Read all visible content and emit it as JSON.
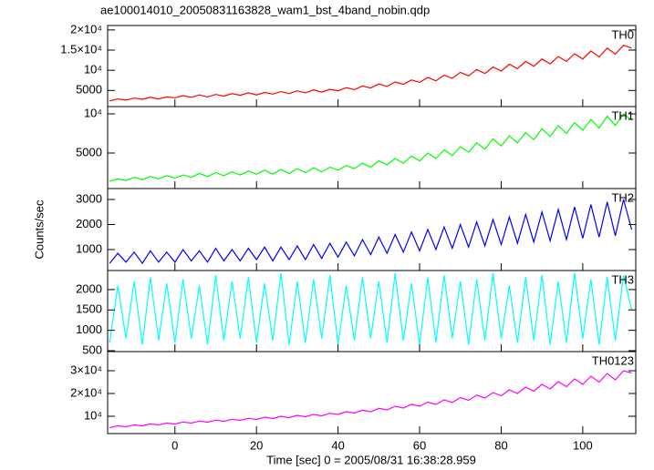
{
  "title": "ae100014010_20050831163828_wam1_bst_4band_nobin.qdp",
  "y_label": "Counts/sec",
  "x_label": "Time [sec] 0 = 2005/08/31 16:38:28.959",
  "chart_data": [
    {
      "type": "line",
      "label": "TH0",
      "color": "#ff0000",
      "x": [
        -16,
        -14,
        -12,
        -10,
        -8,
        -6,
        -4,
        -2,
        0,
        2,
        4,
        6,
        8,
        10,
        12,
        14,
        16,
        18,
        20,
        22,
        24,
        26,
        28,
        30,
        32,
        34,
        36,
        38,
        40,
        42,
        44,
        46,
        48,
        50,
        52,
        54,
        56,
        58,
        60,
        62,
        64,
        66,
        68,
        70,
        72,
        74,
        76,
        78,
        80,
        82,
        84,
        86,
        88,
        90,
        92,
        94,
        96,
        98,
        100,
        102,
        104,
        106,
        108,
        110,
        112
      ],
      "values": [
        2400,
        2900,
        2600,
        3100,
        2800,
        3300,
        2900,
        3400,
        3200,
        3700,
        3300,
        3900,
        3400,
        4000,
        3600,
        4200,
        3800,
        4400,
        3900,
        4500,
        4100,
        4700,
        4200,
        4900,
        4400,
        5100,
        4600,
        5300,
        4900,
        5700,
        5200,
        6100,
        5600,
        6600,
        6000,
        7100,
        6500,
        7600,
        7000,
        8200,
        7400,
        8800,
        8000,
        9500,
        8600,
        10200,
        9200,
        10800,
        9800,
        11500,
        10400,
        12200,
        11000,
        12800,
        11600,
        13400,
        12200,
        14100,
        12800,
        14800,
        13300,
        15500,
        14000,
        16200,
        15500
      ],
      "xlim": [
        -16.5,
        113
      ],
      "ylim": [
        1000,
        21100
      ],
      "yticks": [
        5000,
        {
          "value": 10000,
          "label": "10⁴"
        },
        {
          "value": 15000,
          "label": "1.5×10⁴"
        },
        {
          "value": 20000,
          "label": "2×10⁴"
        }
      ]
    },
    {
      "type": "line",
      "label": "TH1",
      "color": "#00ff00",
      "x": [
        -16,
        -14,
        -12,
        -10,
        -8,
        -6,
        -4,
        -2,
        0,
        2,
        4,
        6,
        8,
        10,
        12,
        14,
        16,
        18,
        20,
        22,
        24,
        26,
        28,
        30,
        32,
        34,
        36,
        38,
        40,
        42,
        44,
        46,
        48,
        50,
        52,
        54,
        56,
        58,
        60,
        62,
        64,
        66,
        68,
        70,
        72,
        74,
        76,
        78,
        80,
        82,
        84,
        86,
        88,
        90,
        92,
        94,
        96,
        98,
        100,
        102,
        104,
        106,
        108,
        110,
        112
      ],
      "values": [
        1400,
        1700,
        1500,
        1900,
        1600,
        2000,
        1700,
        2100,
        1800,
        2200,
        1900,
        2400,
        2000,
        2500,
        2100,
        2600,
        2200,
        2700,
        2300,
        2800,
        2300,
        2900,
        2400,
        3000,
        2500,
        3100,
        2600,
        3200,
        2800,
        3400,
        3000,
        3700,
        3200,
        4000,
        3500,
        4300,
        3700,
        4600,
        4000,
        5000,
        4300,
        5400,
        4700,
        5800,
        5100,
        6300,
        5500,
        6800,
        5900,
        7200,
        6300,
        7600,
        6700,
        8100,
        7100,
        8500,
        7500,
        8900,
        7900,
        9300,
        8200,
        9700,
        8500,
        10000,
        9200
      ],
      "xlim": [
        -16.5,
        113
      ],
      "ylim": [
        465,
        10930
      ],
      "yticks": [
        5000,
        {
          "value": 10000,
          "label": "10⁴"
        }
      ]
    },
    {
      "type": "line",
      "label": "TH2",
      "color": "#0000ff",
      "x": [
        -16,
        -14,
        -12,
        -10,
        -8,
        -6,
        -4,
        -2,
        0,
        2,
        4,
        6,
        8,
        10,
        12,
        14,
        16,
        18,
        20,
        22,
        24,
        26,
        28,
        30,
        32,
        34,
        36,
        38,
        40,
        42,
        44,
        46,
        48,
        50,
        52,
        54,
        56,
        58,
        60,
        62,
        64,
        66,
        68,
        70,
        72,
        74,
        76,
        78,
        80,
        82,
        84,
        86,
        88,
        90,
        92,
        94,
        96,
        98,
        100,
        102,
        104,
        106,
        108,
        110,
        112
      ],
      "values": [
        450,
        850,
        500,
        900,
        450,
        950,
        500,
        900,
        500,
        1000,
        550,
        950,
        500,
        1050,
        550,
        1000,
        550,
        1050,
        600,
        1100,
        550,
        1100,
        600,
        1150,
        600,
        1200,
        650,
        1250,
        700,
        1300,
        750,
        1400,
        800,
        1500,
        850,
        1600,
        900,
        1700,
        950,
        1800,
        1000,
        1900,
        1050,
        2000,
        1100,
        2100,
        1150,
        2200,
        1200,
        2300,
        1250,
        2400,
        1300,
        2500,
        1350,
        2600,
        1400,
        2700,
        1450,
        2800,
        1500,
        2900,
        1550,
        3000,
        1800
      ],
      "xlim": [
        -16.5,
        113
      ],
      "ylim": [
        164,
        3436
      ],
      "yticks": [
        1000,
        2000,
        3000
      ]
    },
    {
      "type": "line",
      "label": "TH3",
      "color": "#00ffff",
      "x": [
        -16,
        -14,
        -12,
        -10,
        -8,
        -6,
        -4,
        -2,
        0,
        2,
        4,
        6,
        8,
        10,
        12,
        14,
        16,
        18,
        20,
        22,
        24,
        26,
        28,
        30,
        32,
        34,
        36,
        38,
        40,
        42,
        44,
        46,
        48,
        50,
        52,
        54,
        56,
        58,
        60,
        62,
        64,
        66,
        68,
        70,
        72,
        74,
        76,
        78,
        80,
        82,
        84,
        86,
        88,
        90,
        92,
        94,
        96,
        98,
        100,
        102,
        104,
        106,
        108,
        110,
        112
      ],
      "values": [
        700,
        2100,
        800,
        2200,
        650,
        2300,
        750,
        2150,
        700,
        2250,
        800,
        2100,
        650,
        2350,
        750,
        2200,
        800,
        2300,
        700,
        2150,
        750,
        2400,
        650,
        2200,
        700,
        2250,
        800,
        2350,
        650,
        2100,
        750,
        2300,
        800,
        2200,
        700,
        2400,
        750,
        2150,
        650,
        2300,
        700,
        2350,
        800,
        2200,
        650,
        2250,
        750,
        2400,
        800,
        2100,
        700,
        2300,
        750,
        2350,
        650,
        2200,
        700,
        2400,
        800,
        2250,
        650,
        2300,
        750,
        2350,
        1500
      ],
      "xlim": [
        -16.5,
        113
      ],
      "ylim": [
        478,
        2467
      ],
      "yticks": [
        500,
        1000,
        1500,
        2000
      ]
    },
    {
      "type": "line",
      "label": "TH0123",
      "color": "#ff00ff",
      "x": [
        -16,
        -14,
        -12,
        -10,
        -8,
        -6,
        -4,
        -2,
        0,
        2,
        4,
        6,
        8,
        10,
        12,
        14,
        16,
        18,
        20,
        22,
        24,
        26,
        28,
        30,
        32,
        34,
        36,
        38,
        40,
        42,
        44,
        46,
        48,
        50,
        52,
        54,
        56,
        58,
        60,
        62,
        64,
        66,
        68,
        70,
        72,
        74,
        76,
        78,
        80,
        82,
        84,
        86,
        88,
        90,
        92,
        94,
        96,
        98,
        100,
        102,
        104,
        106,
        108,
        110,
        112
      ],
      "values": [
        5000,
        5800,
        5400,
        6200,
        5800,
        6600,
        6200,
        7000,
        6600,
        7500,
        7000,
        7900,
        7400,
        8300,
        7800,
        8700,
        8200,
        9100,
        8600,
        9600,
        9000,
        10000,
        9400,
        10400,
        9800,
        10800,
        10200,
        11300,
        10800,
        12000,
        11400,
        12700,
        12000,
        13500,
        12800,
        14400,
        13600,
        15300,
        14400,
        16200,
        15200,
        17200,
        16100,
        18200,
        17000,
        19300,
        18000,
        20400,
        19000,
        21600,
        20000,
        22800,
        21000,
        24000,
        22000,
        25200,
        23000,
        26400,
        24000,
        27600,
        25000,
        28800,
        26000,
        30000,
        29000
      ],
      "xlim": [
        -16.5,
        113
      ],
      "ylim": [
        2400,
        38400
      ],
      "yticks": [
        {
          "value": 10000,
          "label": "10⁴"
        },
        {
          "value": 20000,
          "label": "2×10⁴"
        },
        {
          "value": 30000,
          "label": "3×10⁴"
        }
      ],
      "xticks": [
        0,
        20,
        40,
        60,
        80,
        100
      ]
    }
  ]
}
